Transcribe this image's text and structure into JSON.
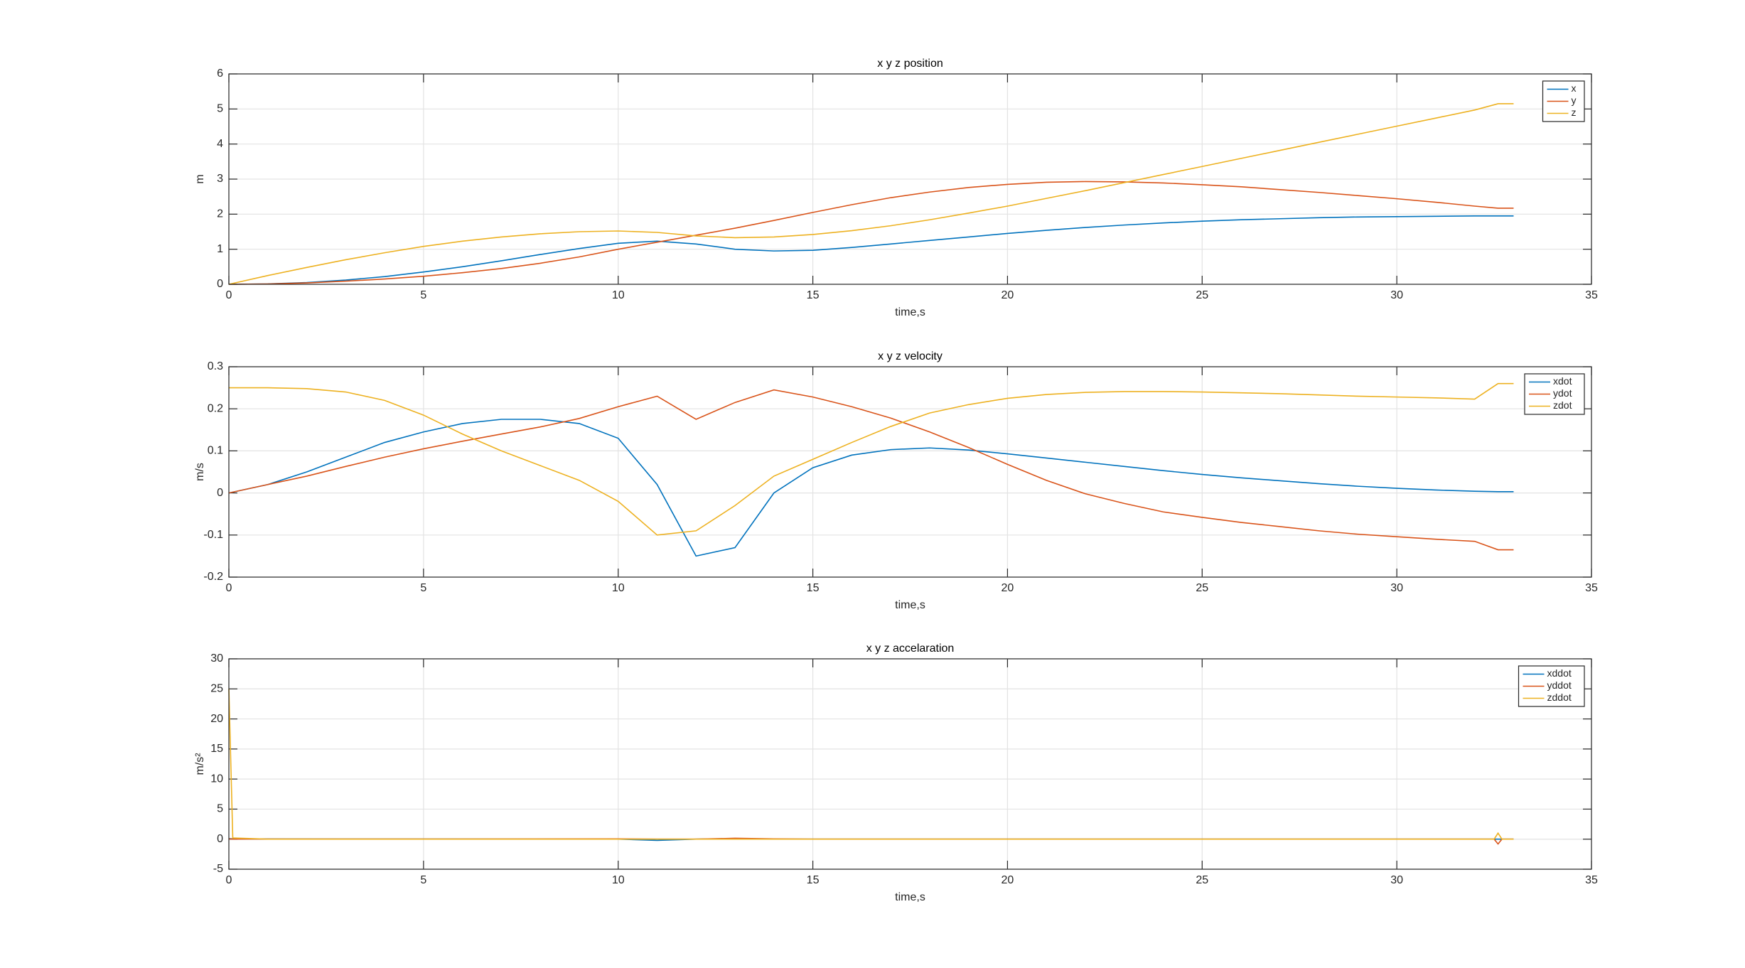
{
  "chart_data": [
    {
      "type": "line",
      "title": "x y z position",
      "xlabel": "time,s",
      "ylabel": "m",
      "x": [
        0,
        1,
        2,
        3,
        4,
        5,
        6,
        7,
        8,
        9,
        10,
        11,
        12,
        13,
        14,
        15,
        16,
        17,
        18,
        19,
        20,
        21,
        22,
        23,
        24,
        25,
        26,
        27,
        28,
        29,
        30,
        31,
        32,
        32.6,
        33
      ],
      "series": [
        {
          "name": "x",
          "color": "#0072BD",
          "values": [
            0,
            0.01,
            0.05,
            0.12,
            0.22,
            0.35,
            0.5,
            0.67,
            0.85,
            1.02,
            1.17,
            1.23,
            1.15,
            1.0,
            0.95,
            0.97,
            1.05,
            1.15,
            1.25,
            1.35,
            1.45,
            1.54,
            1.62,
            1.69,
            1.75,
            1.8,
            1.84,
            1.87,
            1.9,
            1.92,
            1.93,
            1.94,
            1.95,
            1.95,
            1.95
          ]
        },
        {
          "name": "y",
          "color": "#D95319",
          "values": [
            0,
            0.01,
            0.04,
            0.09,
            0.15,
            0.23,
            0.33,
            0.45,
            0.6,
            0.78,
            1.0,
            1.2,
            1.4,
            1.6,
            1.82,
            2.05,
            2.27,
            2.47,
            2.63,
            2.76,
            2.85,
            2.91,
            2.93,
            2.92,
            2.89,
            2.84,
            2.78,
            2.7,
            2.62,
            2.53,
            2.44,
            2.34,
            2.23,
            2.17,
            2.17
          ]
        },
        {
          "name": "z",
          "color": "#EDB120",
          "values": [
            0,
            0.25,
            0.48,
            0.7,
            0.9,
            1.08,
            1.23,
            1.35,
            1.44,
            1.5,
            1.52,
            1.48,
            1.38,
            1.33,
            1.35,
            1.42,
            1.53,
            1.67,
            1.84,
            2.03,
            2.23,
            2.45,
            2.67,
            2.9,
            3.13,
            3.36,
            3.59,
            3.82,
            4.05,
            4.28,
            4.51,
            4.74,
            4.97,
            5.15,
            5.15
          ]
        }
      ],
      "xlim": [
        0,
        35
      ],
      "xticks": [
        0,
        5,
        10,
        15,
        20,
        25,
        30,
        35
      ],
      "ylim": [
        0,
        6
      ],
      "yticks": [
        0,
        1,
        2,
        3,
        4,
        5,
        6
      ],
      "grid": true,
      "legend": "upper-right"
    },
    {
      "type": "line",
      "title": "x y z velocity",
      "xlabel": "time,s",
      "ylabel": "m/s",
      "x": [
        0,
        1,
        2,
        3,
        4,
        5,
        6,
        7,
        8,
        9,
        10,
        11,
        12,
        13,
        14,
        15,
        16,
        17,
        18,
        19,
        20,
        21,
        22,
        23,
        24,
        25,
        26,
        27,
        28,
        29,
        30,
        31,
        32,
        32.6,
        33
      ],
      "series": [
        {
          "name": "xdot",
          "color": "#0072BD",
          "values": [
            0,
            0.02,
            0.05,
            0.085,
            0.12,
            0.145,
            0.165,
            0.175,
            0.175,
            0.165,
            0.13,
            0.02,
            -0.15,
            -0.13,
            0.0,
            0.06,
            0.09,
            0.103,
            0.107,
            0.102,
            0.093,
            0.083,
            0.073,
            0.063,
            0.053,
            0.044,
            0.036,
            0.029,
            0.022,
            0.016,
            0.011,
            0.007,
            0.004,
            0.003,
            0.003
          ]
        },
        {
          "name": "ydot",
          "color": "#D95319",
          "values": [
            0,
            0.02,
            0.04,
            0.063,
            0.085,
            0.105,
            0.123,
            0.14,
            0.157,
            0.177,
            0.205,
            0.23,
            0.175,
            0.215,
            0.245,
            0.228,
            0.205,
            0.178,
            0.145,
            0.108,
            0.068,
            0.03,
            -0.002,
            -0.025,
            -0.045,
            -0.058,
            -0.07,
            -0.08,
            -0.09,
            -0.098,
            -0.104,
            -0.11,
            -0.115,
            -0.135,
            -0.135
          ]
        },
        {
          "name": "zdot",
          "color": "#EDB120",
          "values": [
            0.25,
            0.25,
            0.248,
            0.24,
            0.22,
            0.185,
            0.14,
            0.1,
            0.065,
            0.03,
            -0.02,
            -0.1,
            -0.09,
            -0.03,
            0.04,
            0.08,
            0.12,
            0.158,
            0.19,
            0.21,
            0.225,
            0.234,
            0.239,
            0.241,
            0.241,
            0.24,
            0.238,
            0.236,
            0.233,
            0.23,
            0.228,
            0.226,
            0.223,
            0.26,
            0.26
          ]
        }
      ],
      "xlim": [
        0,
        35
      ],
      "xticks": [
        0,
        5,
        10,
        15,
        20,
        25,
        30,
        35
      ],
      "ylim": [
        -0.2,
        0.3
      ],
      "yticks": [
        -0.2,
        -0.1,
        0,
        0.1,
        0.2,
        0.3
      ],
      "grid": true,
      "legend": "upper-right"
    },
    {
      "type": "line",
      "title": "x y z accelaration",
      "xlabel": "time,s",
      "ylabel": "m/s²",
      "x": [
        0,
        0.1,
        1,
        5,
        10,
        11,
        12,
        13,
        14,
        15,
        20,
        25,
        30,
        32.5,
        32.6,
        32.7,
        33
      ],
      "series": [
        {
          "name": "xddot",
          "color": "#0072BD",
          "values": [
            0.1,
            0.05,
            0.03,
            0.02,
            0.0,
            -0.2,
            0.0,
            0.1,
            0.0,
            0.0,
            0.0,
            0.0,
            0.0,
            0.0,
            0.0,
            0.0,
            0.0
          ]
        },
        {
          "name": "yddot",
          "color": "#D95319",
          "values": [
            0.05,
            0.02,
            0.02,
            0.02,
            0.05,
            0.0,
            0.0,
            0.15,
            0.05,
            0.0,
            0.0,
            0.0,
            0.0,
            0.0,
            -0.8,
            0.0,
            0.0
          ]
        },
        {
          "name": "zddot",
          "color": "#EDB120",
          "values": [
            25,
            0.2,
            0.0,
            0.0,
            0.0,
            0.0,
            0.0,
            0.0,
            0.0,
            0.0,
            0.0,
            0.0,
            0.0,
            0.0,
            1.0,
            0.0,
            0.0
          ]
        }
      ],
      "xlim": [
        0,
        35
      ],
      "xticks": [
        0,
        5,
        10,
        15,
        20,
        25,
        30,
        35
      ],
      "ylim": [
        -5,
        30
      ],
      "yticks": [
        -5,
        0,
        5,
        10,
        15,
        20,
        25,
        30
      ],
      "grid": true,
      "legend": "upper-right"
    }
  ]
}
